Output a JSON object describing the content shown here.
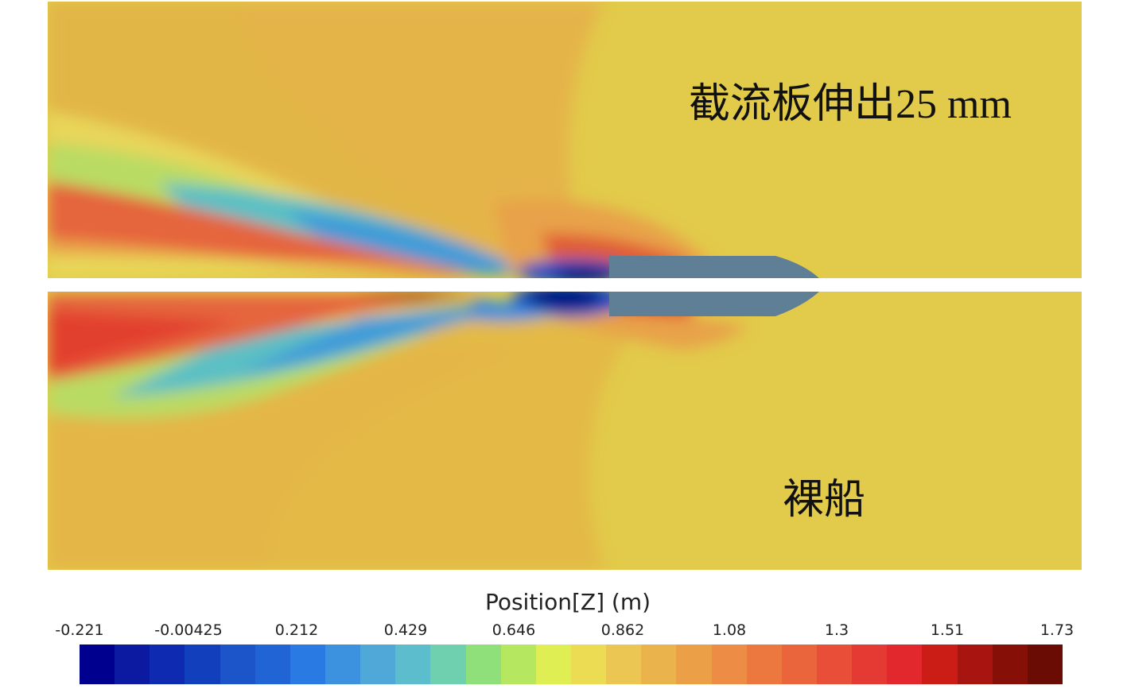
{
  "labels": {
    "top_panel": "截流板伸出25 mm",
    "bottom_panel": "裸船"
  },
  "legend": {
    "title": "Position[Z] (m)",
    "ticks": [
      "-0.221",
      "-0.00425",
      "0.212",
      "0.429",
      "0.646",
      "0.862",
      "1.08",
      "1.3",
      "1.51",
      "1.73"
    ],
    "colors": [
      "#00008f",
      "#0b1aa0",
      "#0d2ab0",
      "#1240bd",
      "#1b55c9",
      "#2064d6",
      "#2a7ae3",
      "#3d92e0",
      "#4fa8d8",
      "#5cbdcc",
      "#6fd0b0",
      "#8fe07a",
      "#b5e860",
      "#dfee52",
      "#ecdc54",
      "#ecc652",
      "#ebb34c",
      "#eba048",
      "#ec8c45",
      "#ec7840",
      "#ea643c",
      "#e84e38",
      "#e53a33",
      "#e2282d",
      "#cc1c16",
      "#a81410",
      "#861008",
      "#6b0c04"
    ]
  }
}
